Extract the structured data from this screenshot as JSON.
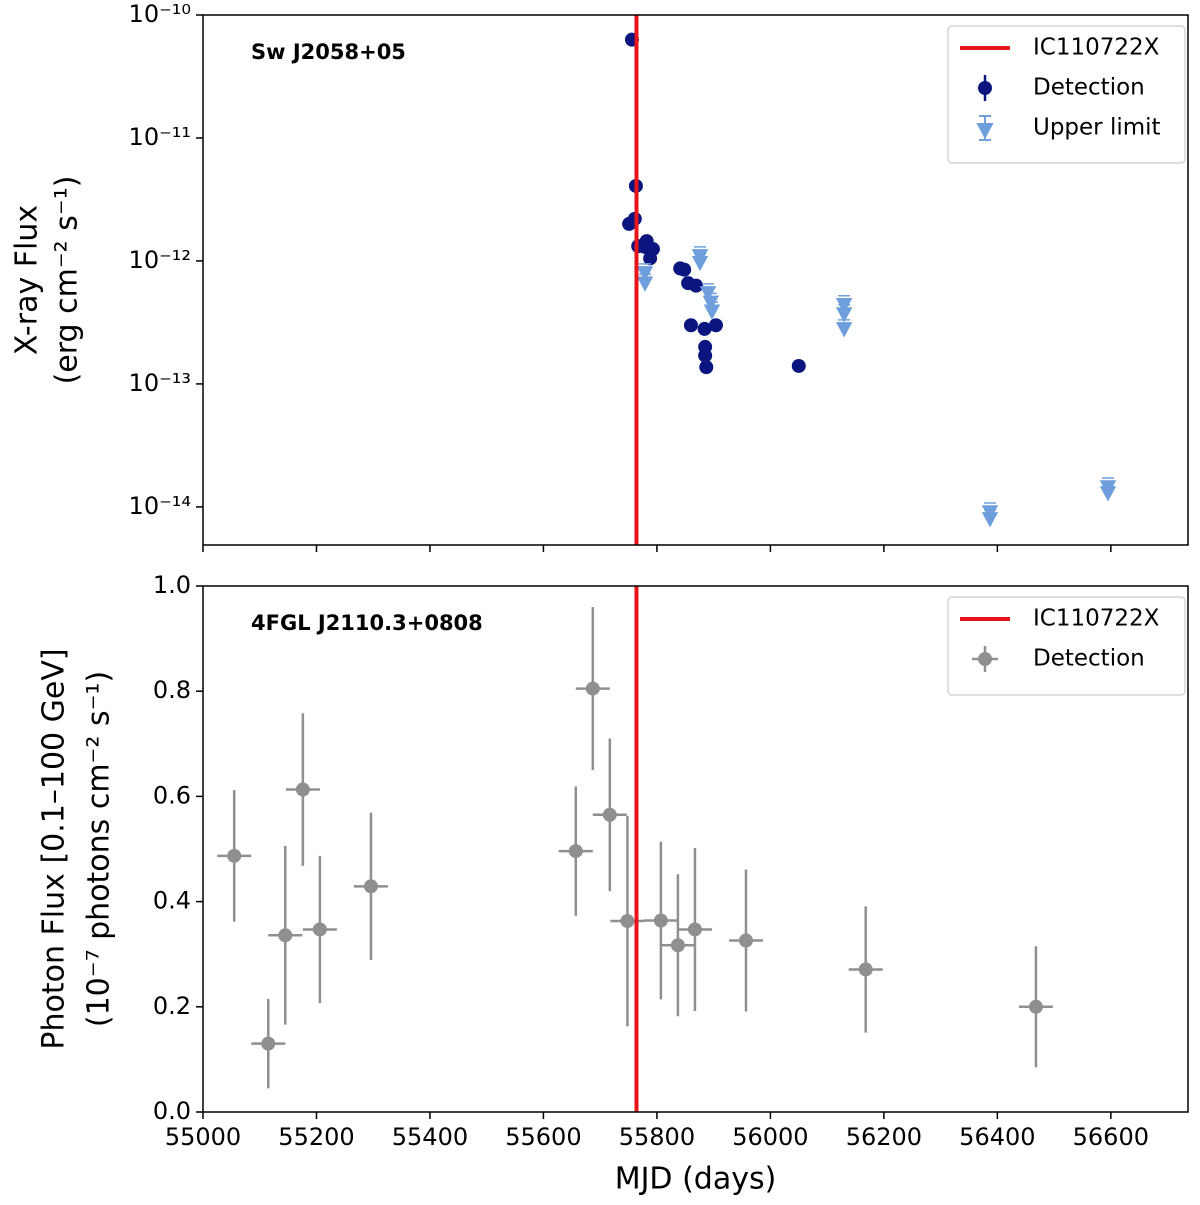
{
  "chart_data": [
    {
      "type": "scatter",
      "annotation": "Sw J2058+05",
      "ylabel": [
        "X-ray Flux",
        "(erg cm⁻² s⁻¹)"
      ],
      "xlim": [
        55000,
        56736
      ],
      "ylim": [
        4.9e-15,
        1e-10
      ],
      "log_y": true,
      "yticks": [
        {
          "value": 1e-14,
          "label": "10⁻¹⁴"
        },
        {
          "value": 1e-13,
          "label": "10⁻¹³"
        },
        {
          "value": 1e-12,
          "label": "10⁻¹²"
        },
        {
          "value": 1e-11,
          "label": "10⁻¹¹"
        },
        {
          "value": 1e-10,
          "label": "10⁻¹⁰"
        }
      ],
      "vline": {
        "name": "IC110722X",
        "x": 55764,
        "color": "#e8141c"
      },
      "legend": "upper right",
      "series": [
        {
          "name": "Detection",
          "color": "#0b1580",
          "marker": "o",
          "x": [
            55756,
            55763,
            55751,
            55761,
            55767,
            55782,
            55779,
            55793,
            55788,
            55841,
            55848,
            55855,
            55869,
            55860,
            55884,
            55904,
            55885,
            55885,
            55887,
            56050
          ],
          "values": [
            6.3e-11,
            4.07e-12,
            2e-12,
            2.2e-12,
            1.32e-12,
            1.45e-12,
            1.3e-12,
            1.25e-12,
            1.05e-12,
            8.7e-13,
            8.5e-13,
            6.6e-13,
            6.3e-13,
            3e-13,
            2.8e-13,
            3e-13,
            2e-13,
            1.7e-13,
            1.37e-13,
            1.4e-13
          ]
        },
        {
          "name": "Upper limit",
          "color": "#6e9fdc",
          "marker": "v",
          "x": [
            55779,
            55779,
            55876,
            55876,
            55890,
            55895,
            55897,
            56130,
            56130,
            56130,
            56387,
            56387,
            56595,
            56595
          ],
          "values": [
            8e-13,
            6.6e-13,
            1.1e-12,
            9.7e-13,
            5.5e-13,
            4.6e-13,
            3.9e-13,
            4.4e-13,
            3.7e-13,
            2.8e-13,
            9.1e-15,
            8e-15,
            1.45e-14,
            1.3e-14
          ]
        }
      ]
    },
    {
      "type": "scatter",
      "annotation": "4FGL J2110.3+0808",
      "ylabel": [
        "Photon Flux [0.1–100 GeV]",
        "(10⁻⁷ photons cm⁻² s⁻¹)"
      ],
      "xlabel": "MJD (days)",
      "xlim": [
        55000,
        56736
      ],
      "ylim": [
        0,
        1.0
      ],
      "log_y": false,
      "xticks": [
        55000,
        55200,
        55400,
        55600,
        55800,
        56000,
        56200,
        56400,
        56600
      ],
      "yticks": [
        {
          "value": 0,
          "label": "0.0"
        },
        0.2,
        0.4,
        0.6,
        0.8,
        {
          "value": 1,
          "label": "1.0"
        }
      ],
      "vline": {
        "name": "IC110722X",
        "x": 55764,
        "color": "#e8141c"
      },
      "legend": "upper right",
      "series": [
        {
          "name": "Detection",
          "color": "#8f8f8f",
          "marker": "o",
          "x": [
            55055,
            55115,
            55145,
            55176,
            55206,
            55296,
            55657,
            55687,
            55717,
            55748,
            55807,
            55837,
            55867,
            55957,
            56168,
            56468
          ],
          "values": [
            0.487,
            0.13,
            0.336,
            0.613,
            0.347,
            0.429,
            0.496,
            0.805,
            0.565,
            0.363,
            0.364,
            0.317,
            0.347,
            0.326,
            0.271,
            0.2
          ],
          "yerr": [
            0.125,
            0.085,
            0.17,
            0.145,
            0.14,
            0.14,
            0.123,
            0.155,
            0.145,
            0.2,
            0.15,
            0.135,
            0.155,
            0.135,
            0.12,
            0.115
          ],
          "xerr": [
            30,
            30,
            30,
            30,
            30,
            30,
            30,
            30,
            30,
            30,
            30,
            30,
            30,
            30,
            30,
            30
          ]
        }
      ]
    }
  ]
}
